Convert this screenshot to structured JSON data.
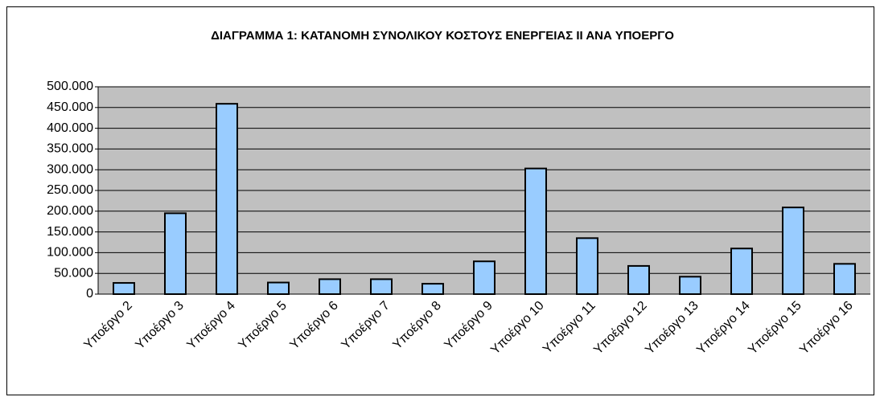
{
  "chart_data": {
    "type": "bar",
    "title": "ΔΙΑΓΡΑΜΜΑ 1: ΚΑΤΑΝΟΜΗ ΣΥΝΟΛΙΚΟΥ ΚΟΣΤΟΥΣ ΕΝΕΡΓΕΙΑΣ ΙΙ  ΑΝΑ ΥΠΟΕΡΓΟ",
    "categories": [
      "Υποέργο 2",
      "Υποέργο 3",
      "Υποέργο 4",
      "Υποέργο 5",
      "Υποέργο 6",
      "Υποέργο 7",
      "Υποέργο 8",
      "Υποέργο 9",
      "Υποέργο 10",
      "Υποέργο 11",
      "Υποέργο 12",
      "Υποέργο 13",
      "Υποέργο 14",
      "Υποέργο 15",
      "Υποέργο 16"
    ],
    "values": [
      27000,
      195000,
      459000,
      28000,
      36000,
      36000,
      25000,
      79000,
      303000,
      135000,
      68000,
      42000,
      110000,
      209000,
      73000
    ],
    "color": "#99ccff",
    "ylim": [
      0,
      500000
    ],
    "yticks": [
      0,
      {
        "value": 50000,
        "label": "50.000"
      },
      {
        "value": 100000,
        "label": "100.000"
      },
      {
        "value": 150000,
        "label": "150.000"
      },
      {
        "value": 200000,
        "label": "200.000"
      },
      {
        "value": 250000,
        "label": "250.000"
      },
      {
        "value": 300000,
        "label": "300.000"
      },
      {
        "value": 350000,
        "label": "350.000"
      },
      {
        "value": 400000,
        "label": "400.000"
      },
      {
        "value": 450000,
        "label": "450.000"
      },
      {
        "value": 500000,
        "label": "500.000"
      }
    ],
    "grid": true
  }
}
